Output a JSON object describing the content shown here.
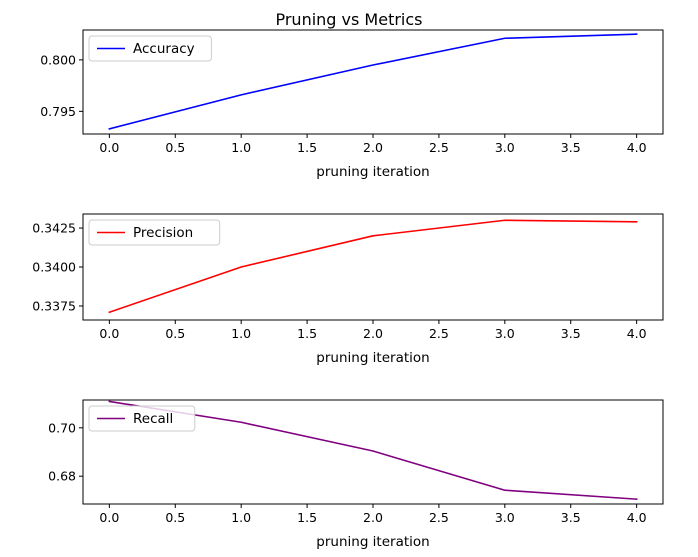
{
  "title": "Pruning vs Metrics",
  "chart_data": [
    {
      "type": "line",
      "xlabel": "pruning iteration",
      "ylabel": "",
      "x": [
        0,
        1,
        2,
        3,
        4
      ],
      "xlim": [
        -0.2,
        4.2
      ],
      "ylim": [
        0.7928,
        0.8029
      ],
      "xticks": [
        "0.0",
        "0.5",
        "1.0",
        "1.5",
        "2.0",
        "2.5",
        "3.0",
        "3.5",
        "4.0"
      ],
      "yticks": [
        "0.795",
        "0.800"
      ],
      "legend_position": "upper-left",
      "series": [
        {
          "name": "Accuracy",
          "color": "#0000ff",
          "values": [
            0.7933,
            0.7966,
            0.7995,
            0.8021,
            0.8025
          ]
        }
      ]
    },
    {
      "type": "line",
      "xlabel": "pruning iteration",
      "ylabel": "",
      "x": [
        0,
        1,
        2,
        3,
        4
      ],
      "xlim": [
        -0.2,
        4.2
      ],
      "ylim": [
        0.3366,
        0.3434
      ],
      "xticks": [
        "0.0",
        "0.5",
        "1.0",
        "1.5",
        "2.0",
        "2.5",
        "3.0",
        "3.5",
        "4.0"
      ],
      "yticks": [
        "0.3375",
        "0.3400",
        "0.3425"
      ],
      "legend_position": "upper-left",
      "series": [
        {
          "name": "Precision",
          "color": "#ff0000",
          "values": [
            0.3371,
            0.34,
            0.342,
            0.343,
            0.3429
          ]
        }
      ]
    },
    {
      "type": "line",
      "xlabel": "pruning iteration",
      "ylabel": "",
      "x": [
        0,
        1,
        2,
        3,
        4
      ],
      "xlim": [
        -0.2,
        4.2
      ],
      "ylim": [
        0.6685,
        0.7115
      ],
      "xticks": [
        "0.0",
        "0.5",
        "1.0",
        "1.5",
        "2.0",
        "2.5",
        "3.0",
        "3.5",
        "4.0"
      ],
      "yticks": [
        "0.68",
        "0.70"
      ],
      "legend_position": "upper-left",
      "series": [
        {
          "name": "Recall",
          "color": "#800080",
          "values": [
            0.7109,
            0.7023,
            0.6904,
            0.6742,
            0.6705
          ]
        }
      ]
    }
  ]
}
